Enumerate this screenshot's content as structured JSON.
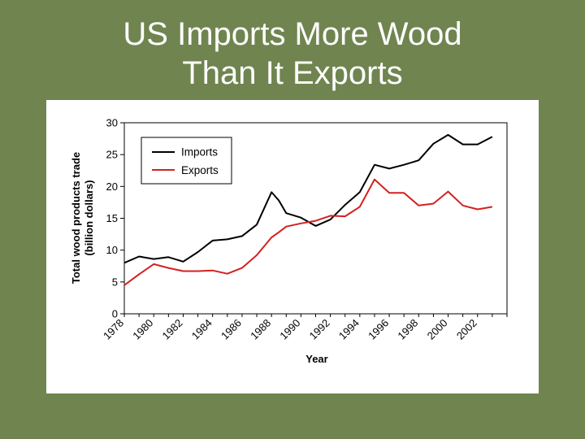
{
  "slide": {
    "title_line1": "US Imports More Wood",
    "title_line2": "Than It Exports"
  },
  "colors": {
    "background": "#708450",
    "imports": "#000000",
    "exports": "#d42020"
  },
  "chart_data": {
    "type": "line",
    "title": "",
    "xlabel": "Year",
    "ylabel_line1": "Total wood products trade",
    "ylabel_line2": "(billion dollars)",
    "xlim": [
      1978,
      2004
    ],
    "ylim": [
      0,
      30
    ],
    "yticks": [
      0,
      5,
      10,
      15,
      20,
      25,
      30
    ],
    "xtick_labels": [
      "1978",
      "1980",
      "1982",
      "1984",
      "1986",
      "1988",
      "1990",
      "1992",
      "1994",
      "1996",
      "1998",
      "2000",
      "2002"
    ],
    "legend_position": "top-left",
    "grid": false,
    "x": [
      1978,
      1979,
      1980,
      1981,
      1982,
      1983,
      1984,
      1985,
      1986,
      1987,
      1988,
      1988.5,
      1989,
      1990,
      1991,
      1992,
      1993,
      1994,
      1995,
      1996,
      1997,
      1998,
      1999,
      2000,
      2001,
      2002,
      2003
    ],
    "series": [
      {
        "name": "Imports",
        "color": "#000000",
        "values": [
          8.0,
          9.0,
          8.6,
          8.9,
          8.2,
          9.7,
          11.5,
          11.7,
          12.2,
          14.0,
          19.1,
          17.8,
          15.8,
          15.1,
          13.8,
          14.8,
          17.1,
          19.1,
          23.4,
          22.8,
          23.4,
          24.1,
          26.7,
          28.1,
          26.6,
          26.6,
          27.8
        ]
      },
      {
        "name": "Exports",
        "color": "#d42020",
        "values": [
          4.5,
          6.2,
          7.8,
          7.2,
          6.7,
          6.7,
          6.8,
          6.3,
          7.2,
          9.2,
          12.0,
          12.8,
          13.7,
          14.2,
          14.6,
          15.4,
          15.3,
          16.8,
          21.1,
          19.0,
          19.0,
          17.0,
          17.3,
          19.2,
          17.0,
          16.4,
          16.8
        ]
      }
    ]
  }
}
